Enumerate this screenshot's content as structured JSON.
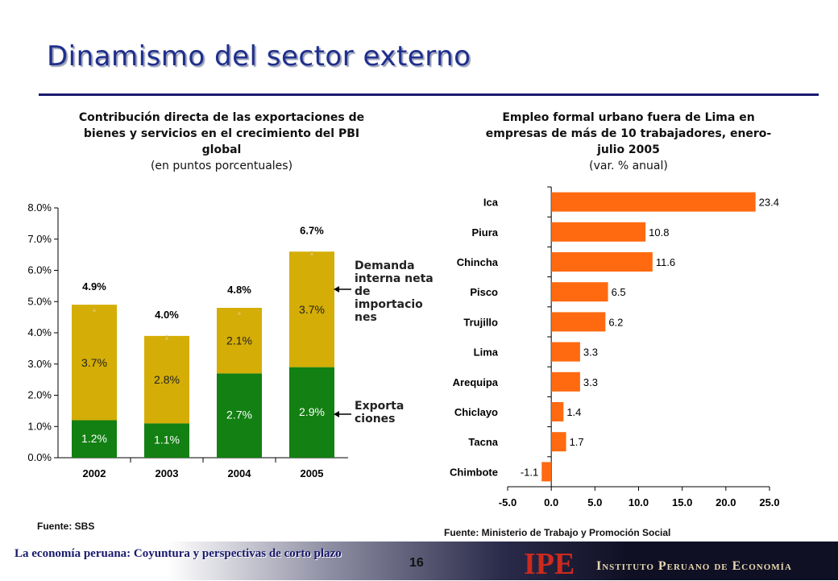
{
  "slide": {
    "title": "Dinamismo del sector externo",
    "footer_text": "La economía peruana: Coyuntura y perspectivas de corto plazo",
    "page_number": "16",
    "logo_text": "IPE",
    "institute_name": "Instituto Peruano de Economía"
  },
  "left": {
    "title_bold": "Contribución directa de las exportaciones de bienes y servicios en el crecimiento del PBI global",
    "title_sub": "(en puntos porcentuales)",
    "annotation_demand": "Demanda interna neta de importacio nes",
    "annotation_exports": "Exporta ciones",
    "source": "Fuente: SBS"
  },
  "right": {
    "title_bold": "Empleo formal urbano fuera de Lima en empresas de más de 10 trabajadores, enero-julio 2005",
    "title_sub": "(var. % anual)",
    "source": "Fuente: Ministerio de Trabajo y Promoción Social"
  },
  "colors": {
    "green": "#128012",
    "gold": "#d4ad06",
    "orange": "#ff6a10",
    "title_blue": "#1f2f8c"
  },
  "chart_data": [
    {
      "type": "bar",
      "stacked": true,
      "categories": [
        "2002",
        "2003",
        "2004",
        "2005"
      ],
      "series": [
        {
          "values": [
            1.2,
            1.1,
            2.7,
            2.9
          ],
          "labels": [
            "1.2%",
            "1.1%",
            "2.7%",
            "2.9%"
          ],
          "color": "#128012"
        },
        {
          "values": [
            3.7,
            2.8,
            2.1,
            3.7
          ],
          "labels": [
            "3.7%",
            "2.8%",
            "2.1%",
            "3.7%"
          ],
          "color": "#d4ad06"
        }
      ],
      "totals": [
        4.9,
        4.0,
        4.8,
        6.7
      ],
      "total_labels": [
        "4.9%",
        "4.0%",
        "4.8%",
        "6.7%"
      ],
      "ylim": [
        0,
        8
      ],
      "yticks": [
        0,
        1,
        2,
        3,
        4,
        5,
        6,
        7,
        8
      ],
      "ytick_labels": [
        "0.0%",
        "1.0%",
        "2.0%",
        "3.0%",
        "4.0%",
        "5.0%",
        "6.0%",
        "7.0%",
        "8.0%"
      ],
      "grid": false
    },
    {
      "type": "bar",
      "orientation": "horizontal",
      "categories": [
        "Ica",
        "Piura",
        "Chincha",
        "Pisco",
        "Trujillo",
        "Lima",
        "Arequipa",
        "Chiclayo",
        "Tacna",
        "Chimbote"
      ],
      "values": [
        23.4,
        10.8,
        11.6,
        6.5,
        6.2,
        3.3,
        3.3,
        1.4,
        1.7,
        -1.1
      ],
      "value_labels": [
        "23.4",
        "10.8",
        "11.6",
        "6.5",
        "6.2",
        "3.3",
        "3.3",
        "1.4",
        "1.7",
        "-1.1"
      ],
      "xlim": [
        -5,
        25
      ],
      "xticks": [
        -5,
        0,
        5,
        10,
        15,
        20,
        25
      ],
      "xtick_labels": [
        "-5.0",
        "0.0",
        "5.0",
        "10.0",
        "15.0",
        "20.0",
        "25.0"
      ],
      "color": "#ff6a10",
      "grid": false
    }
  ]
}
